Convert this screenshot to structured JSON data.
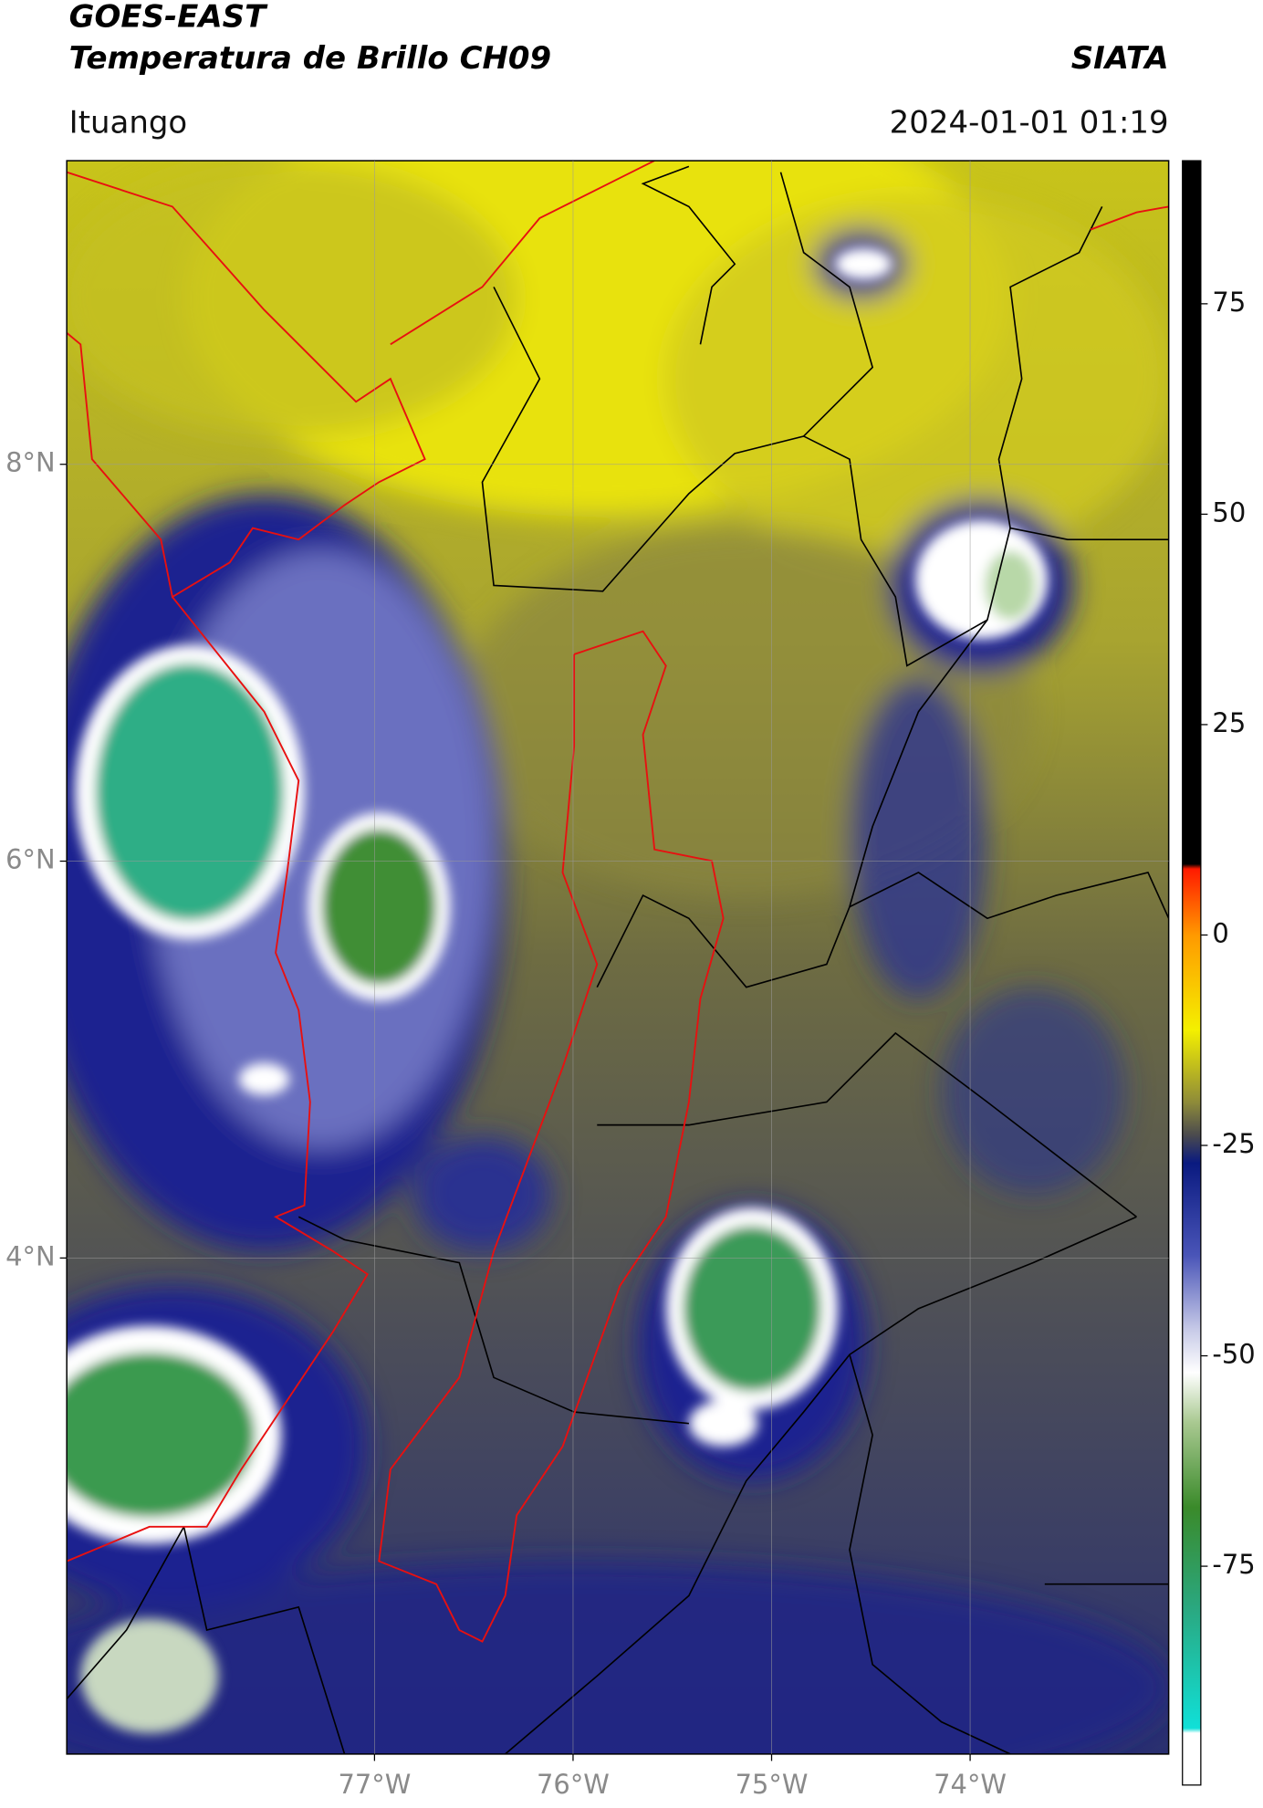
{
  "header": {
    "title": "GOES-EAST",
    "subtitle": "Temperatura de Brillo CH09",
    "source": "SIATA",
    "location": "Ituango",
    "datetime": "2024-01-01 01:19"
  },
  "map": {
    "xlim": [
      -78.55,
      -73.0
    ],
    "ylim": [
      1.5,
      9.53
    ],
    "xticks": [
      {
        "value": -77,
        "label": "77°W"
      },
      {
        "value": -76,
        "label": "76°W"
      },
      {
        "value": -75,
        "label": "75°W"
      },
      {
        "value": -74,
        "label": "74°W"
      }
    ],
    "yticks": [
      {
        "value": 8,
        "label": "8°N"
      },
      {
        "value": 6,
        "label": "6°N"
      },
      {
        "value": 4,
        "label": "4°N"
      }
    ],
    "grid": true
  },
  "colorbar": {
    "lim": [
      -101,
      92
    ],
    "ticks": [
      75,
      50,
      25,
      0,
      -25,
      -50,
      -75
    ]
  }
}
